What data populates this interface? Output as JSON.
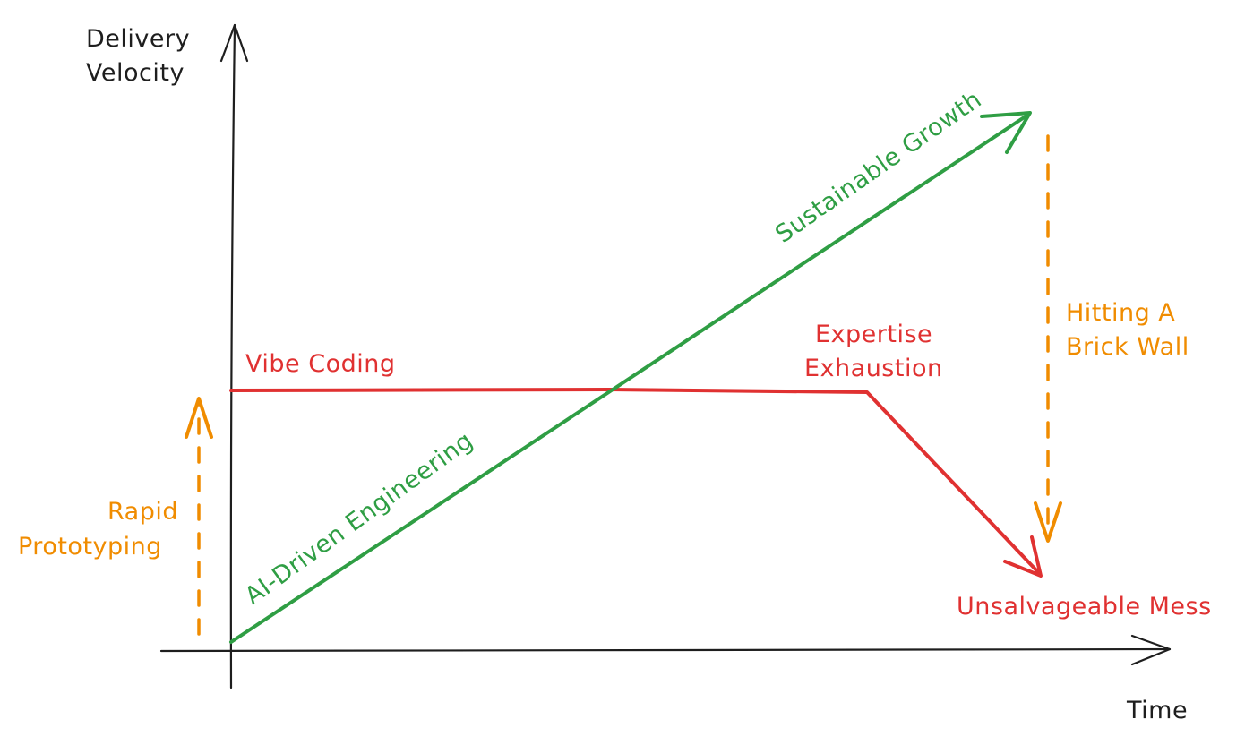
{
  "colors": {
    "axis": "#1e1e1e",
    "green": "#2f9e44",
    "red": "#e03131",
    "orange": "#f08c00"
  },
  "axes": {
    "y_label_line1": "Delivery",
    "y_label_line2": "Velocity",
    "x_label": "Time"
  },
  "labels": {
    "vibe_coding": "Vibe Coding",
    "ai_driven": "AI-Driven Engineering",
    "sustainable": "Sustainable Growth",
    "expertise_line1": "Expertise",
    "expertise_line2": "Exhaustion",
    "unsalvageable": "Unsalvageable Mess",
    "rapid_line1": "Rapid",
    "rapid_line2": "Prototyping",
    "brick_line1": "Hitting A",
    "brick_line2": "Brick Wall"
  }
}
